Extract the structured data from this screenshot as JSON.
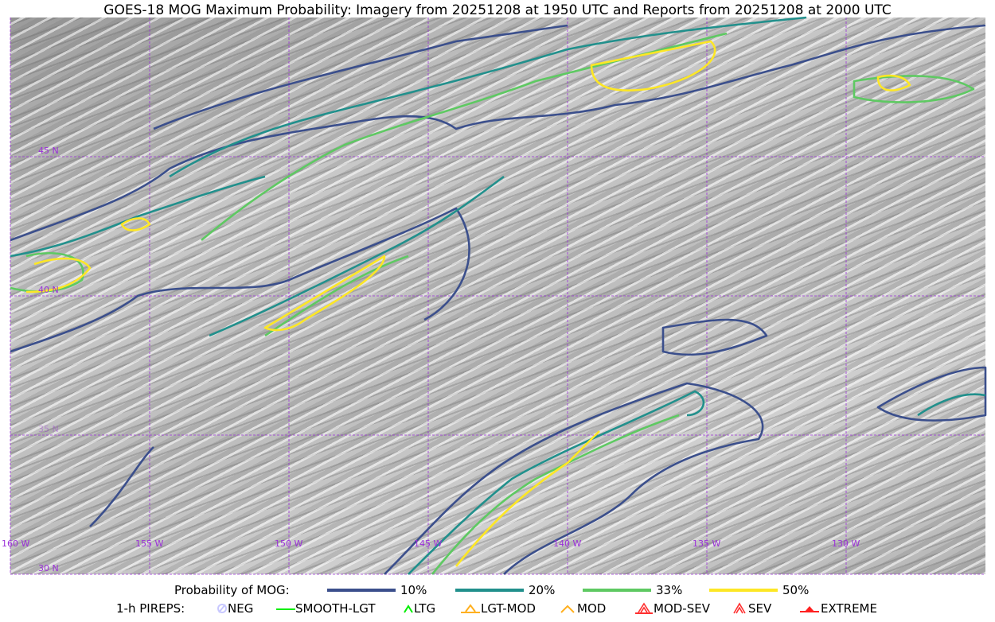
{
  "title": "GOES-18 MOG Maximum Probability: Imagery from 20251208 at 1950 UTC and Reports from 20251208 at 2000 UTC",
  "map": {
    "grid_color": "#9b30d9",
    "lon_labels": [
      "160 W",
      "155 W",
      "150 W",
      "145 W",
      "140 W",
      "135 W",
      "130 W"
    ],
    "lat_labels": [
      "45 N",
      "40 N",
      "35 N",
      "30 N"
    ]
  },
  "legend": {
    "prob_title": "Probability of MOG:",
    "levels": [
      {
        "label": "10%",
        "color": "#3b4f8c"
      },
      {
        "label": "20%",
        "color": "#21908c"
      },
      {
        "label": "33%",
        "color": "#5ec962"
      },
      {
        "label": "50%",
        "color": "#fde725"
      }
    ],
    "pirep_title": "1-h PIREPS:",
    "pireps": [
      {
        "label": "NEG",
        "icon": "neg-circle-slash",
        "color": "#c8c8ff"
      },
      {
        "label": "SMOOTH-LGT",
        "icon": "line",
        "color": "#00ee00"
      },
      {
        "label": "LTG",
        "icon": "caret",
        "color": "#00ee00"
      },
      {
        "label": "LGT-MOD",
        "icon": "caret-bar",
        "color": "#ffb020"
      },
      {
        "label": "MOD",
        "icon": "caret",
        "color": "#ffb020"
      },
      {
        "label": "MOD-SEV",
        "icon": "double-caret-bar",
        "color": "#ff3030"
      },
      {
        "label": "SEV",
        "icon": "double-caret",
        "color": "#ff3030"
      },
      {
        "label": "EXTREME",
        "icon": "filled-triangle",
        "color": "#ff2020"
      }
    ]
  }
}
